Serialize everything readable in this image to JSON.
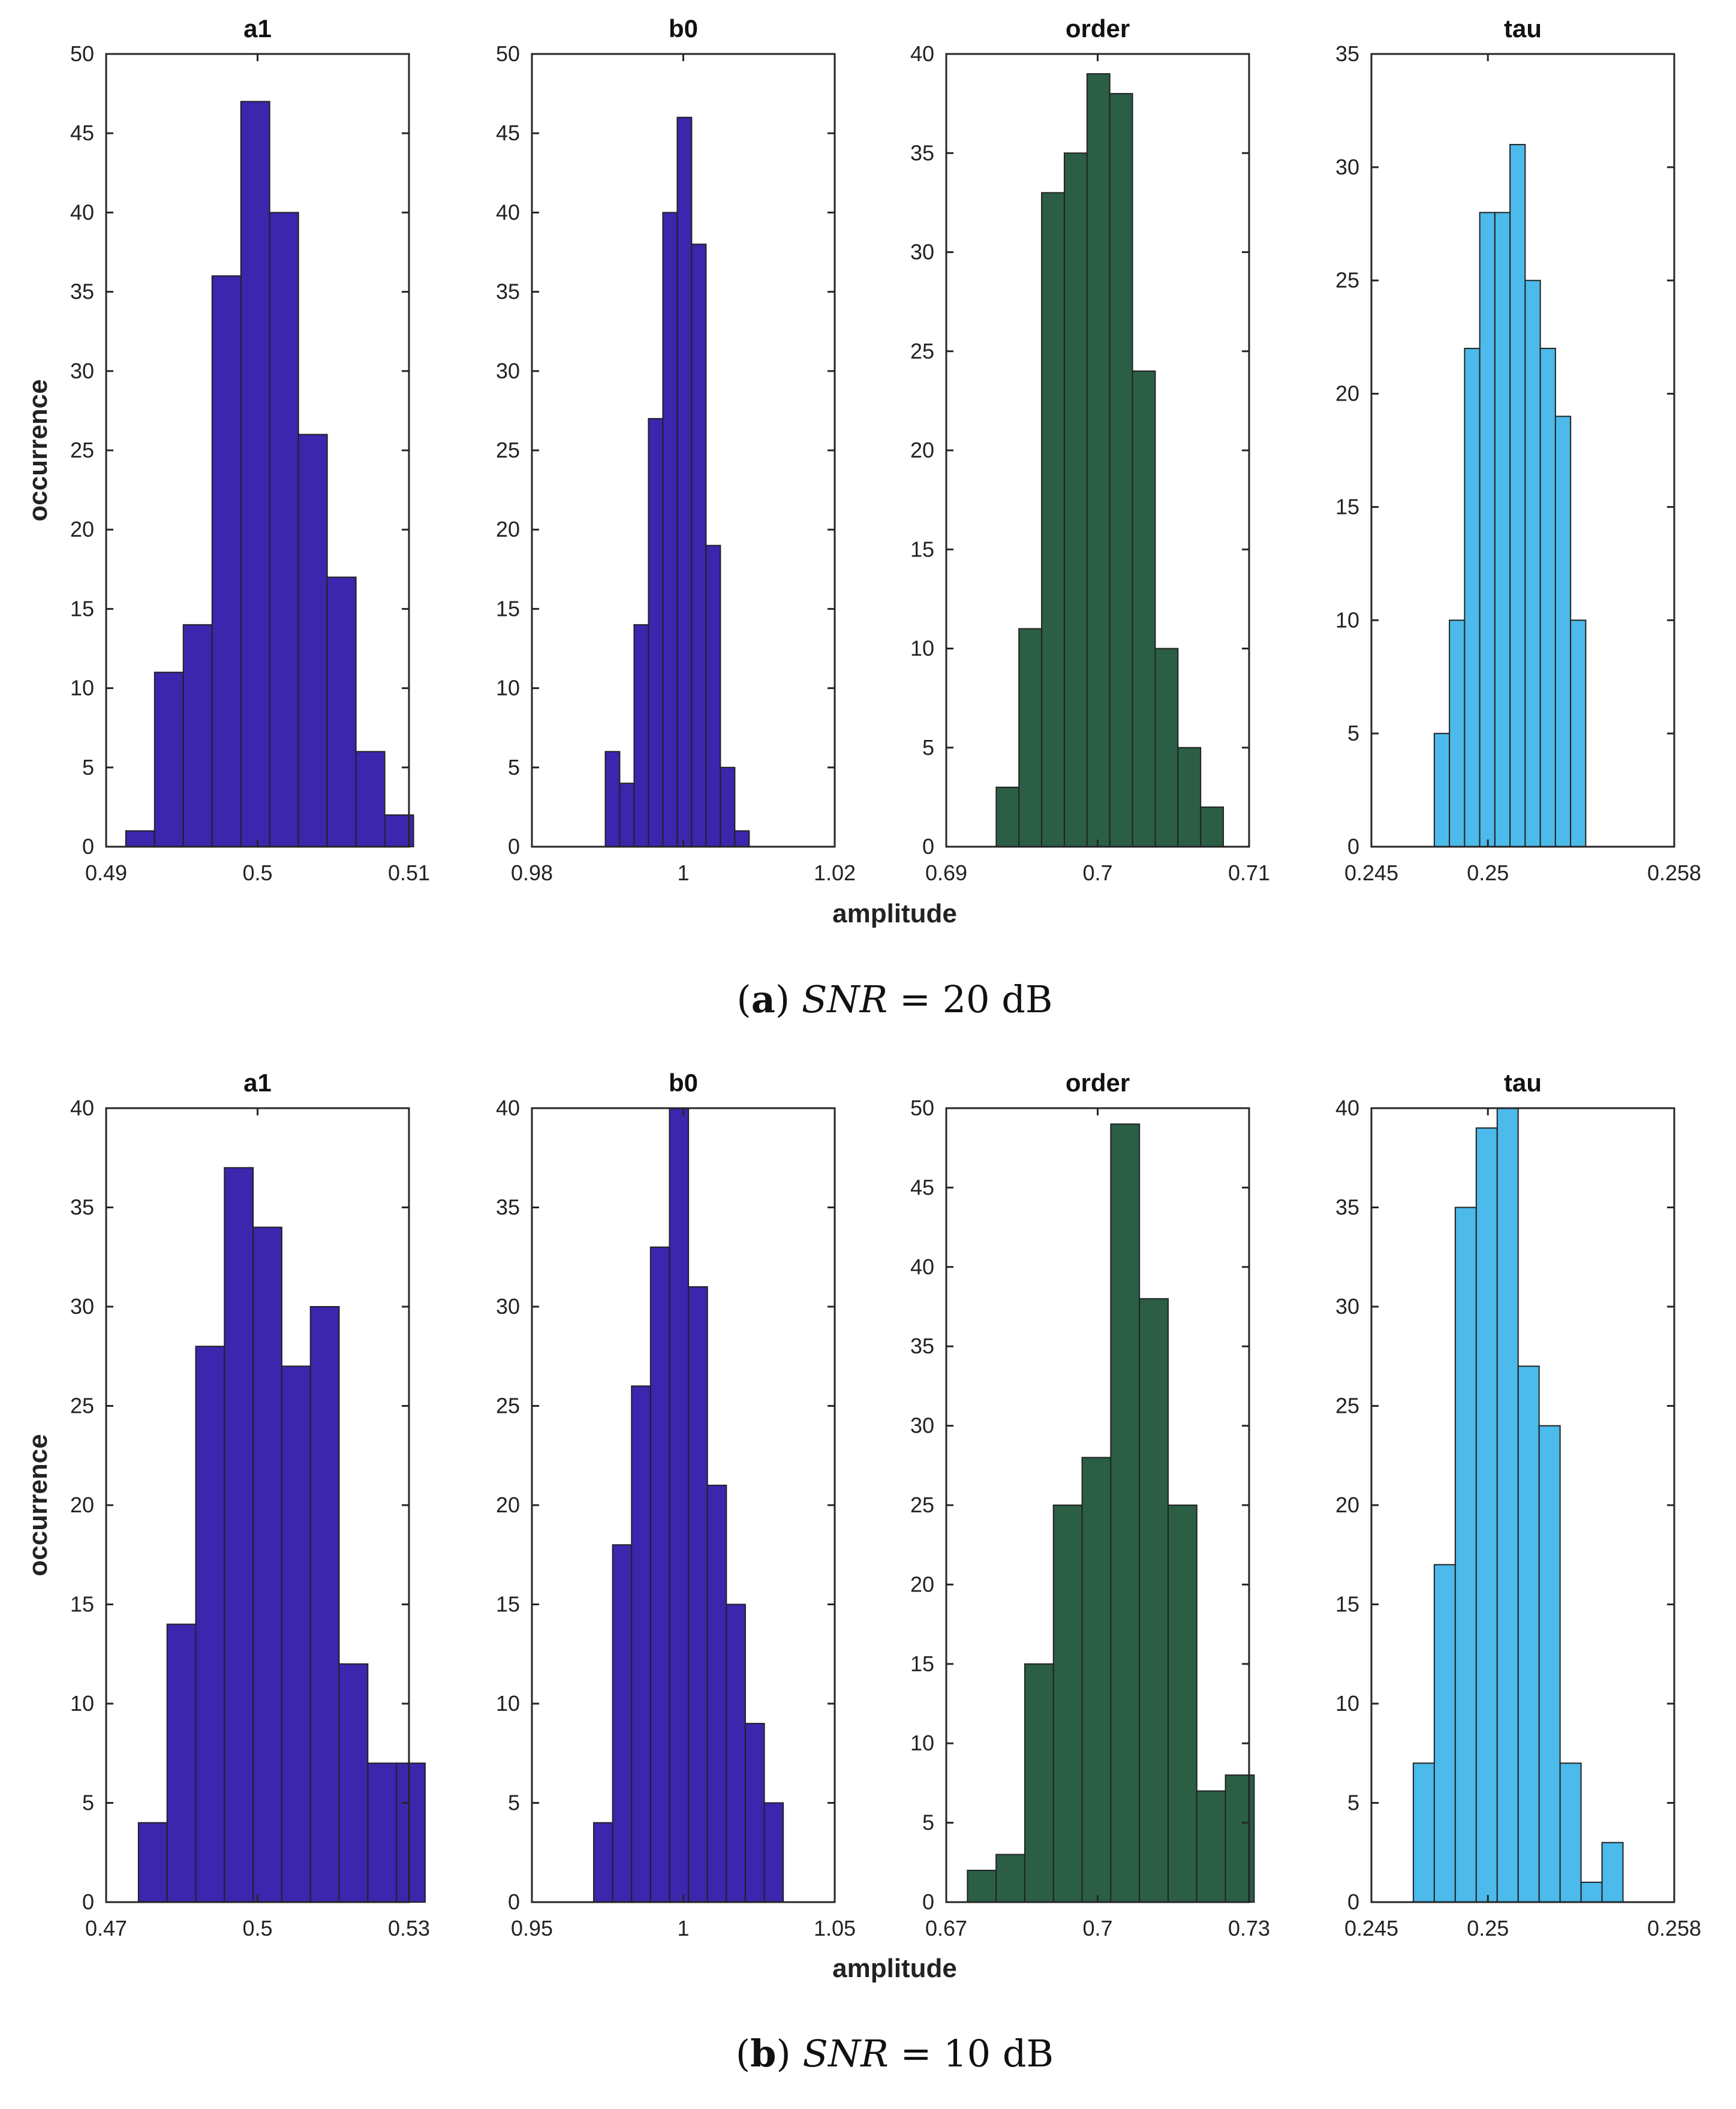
{
  "colors": {
    "a1": "#3b26ad",
    "b0": "#3b26ad",
    "order": "#2b5e45",
    "tau": "#4cbaea",
    "edge": "#222222"
  },
  "shared_labels": {
    "xlabel": "amplitude",
    "ylabel": "occurrence"
  },
  "captions": [
    {
      "letter": "a",
      "open": "(",
      "close": ")",
      "var": "SNR",
      "eq": " = ",
      "value": "20",
      "unit": "dB"
    },
    {
      "letter": "b",
      "open": "(",
      "close": ")",
      "var": "SNR",
      "eq": " = ",
      "value": "10",
      "unit": "dB"
    }
  ],
  "chart_data": [
    {
      "type": "bar",
      "title": "a1",
      "color_key": "a1",
      "panel": "a",
      "ylabel": "occurrence",
      "xlim": [
        0.49,
        0.51
      ],
      "ylim": [
        0,
        50
      ],
      "xticks": [
        0.49,
        0.5,
        0.51
      ],
      "xtick_labels": [
        "0.49",
        "0.5",
        "0.51"
      ],
      "yticks": [
        0,
        5,
        10,
        15,
        20,
        25,
        30,
        35,
        40,
        45,
        50
      ],
      "ytick_labels": [
        "0",
        "5",
        "10",
        "15",
        "20",
        "25",
        "30",
        "35",
        "40",
        "45",
        "50"
      ],
      "bin_start": 0.4913,
      "bin_width": 0.0019,
      "values": [
        1,
        11,
        14,
        36,
        47,
        40,
        26,
        17,
        6,
        2
      ]
    },
    {
      "type": "bar",
      "title": "b0",
      "color_key": "b0",
      "panel": "a",
      "xlim": [
        0.98,
        1.02
      ],
      "ylim": [
        0,
        50
      ],
      "xticks": [
        0.98,
        1,
        1.02
      ],
      "xtick_labels": [
        "0.98",
        "1",
        "1.02"
      ],
      "yticks": [
        0,
        5,
        10,
        15,
        20,
        25,
        30,
        35,
        40,
        45,
        50
      ],
      "ytick_labels": [
        "0",
        "5",
        "10",
        "15",
        "20",
        "25",
        "30",
        "35",
        "40",
        "45",
        "50"
      ],
      "bin_start": 0.9897,
      "bin_width": 0.0019,
      "values": [
        6,
        4,
        14,
        27,
        40,
        46,
        38,
        19,
        5,
        1
      ]
    },
    {
      "type": "bar",
      "title": "order",
      "color_key": "order",
      "panel": "a",
      "xlim": [
        0.69,
        0.71
      ],
      "ylim": [
        0,
        40
      ],
      "xticks": [
        0.69,
        0.7,
        0.71
      ],
      "xtick_labels": [
        "0.69",
        "0.7",
        "0.71"
      ],
      "yticks": [
        0,
        5,
        10,
        15,
        20,
        25,
        30,
        35,
        40
      ],
      "ytick_labels": [
        "0",
        "5",
        "10",
        "15",
        "20",
        "25",
        "30",
        "35",
        "40"
      ],
      "bin_start": 0.6933,
      "bin_width": 0.0015,
      "values": [
        3,
        11,
        33,
        35,
        39,
        38,
        24,
        10,
        5,
        2
      ]
    },
    {
      "type": "bar",
      "title": "tau",
      "color_key": "tau",
      "panel": "a",
      "xlim": [
        0.245,
        0.258
      ],
      "ylim": [
        0,
        35
      ],
      "xticks": [
        0.245,
        0.25,
        0.258
      ],
      "xtick_labels": [
        "0.245",
        "0.25",
        "0.258"
      ],
      "yticks": [
        0,
        5,
        10,
        15,
        20,
        25,
        30,
        35
      ],
      "ytick_labels": [
        "0",
        "5",
        "10",
        "15",
        "20",
        "25",
        "30",
        "35"
      ],
      "bin_start": 0.2477,
      "bin_width": 0.00065,
      "values": [
        5,
        10,
        22,
        28,
        28,
        31,
        25,
        22,
        19,
        10
      ]
    },
    {
      "type": "bar",
      "title": "a1",
      "color_key": "a1",
      "panel": "b",
      "ylabel": "occurrence",
      "xlim": [
        0.47,
        0.53
      ],
      "ylim": [
        0,
        40
      ],
      "xticks": [
        0.47,
        0.5,
        0.53
      ],
      "xtick_labels": [
        "0.47",
        "0.5",
        "0.53"
      ],
      "yticks": [
        0,
        5,
        10,
        15,
        20,
        25,
        30,
        35,
        40
      ],
      "ytick_labels": [
        "0",
        "5",
        "10",
        "15",
        "20",
        "25",
        "30",
        "35",
        "40"
      ],
      "bin_start": 0.4764,
      "bin_width": 0.00568,
      "values": [
        4,
        14,
        28,
        37,
        34,
        27,
        30,
        12,
        7,
        7
      ]
    },
    {
      "type": "bar",
      "title": "b0",
      "color_key": "b0",
      "panel": "b",
      "xlim": [
        0.95,
        1.05
      ],
      "ylim": [
        0,
        40
      ],
      "xticks": [
        0.95,
        1,
        1.05
      ],
      "xtick_labels": [
        "0.95",
        "1",
        "1.05"
      ],
      "yticks": [
        0,
        5,
        10,
        15,
        20,
        25,
        30,
        35,
        40
      ],
      "ytick_labels": [
        "0",
        "5",
        "10",
        "15",
        "20",
        "25",
        "30",
        "35",
        "40"
      ],
      "bin_start": 0.9704,
      "bin_width": 0.00626,
      "values": [
        4,
        18,
        26,
        33,
        40,
        31,
        21,
        15,
        9,
        5
      ]
    },
    {
      "type": "bar",
      "title": "order",
      "color_key": "order",
      "panel": "b",
      "xlim": [
        0.67,
        0.73
      ],
      "ylim": [
        0,
        50
      ],
      "xticks": [
        0.67,
        0.7,
        0.73
      ],
      "xtick_labels": [
        "0.67",
        "0.7",
        "0.73"
      ],
      "yticks": [
        0,
        5,
        10,
        15,
        20,
        25,
        30,
        35,
        40,
        45,
        50
      ],
      "ytick_labels": [
        "0",
        "5",
        "10",
        "15",
        "20",
        "25",
        "30",
        "35",
        "40",
        "45",
        "50"
      ],
      "bin_start": 0.6742,
      "bin_width": 0.00568,
      "values": [
        2,
        3,
        15,
        25,
        28,
        49,
        38,
        25,
        7,
        8
      ]
    },
    {
      "type": "bar",
      "title": "tau",
      "color_key": "tau",
      "panel": "b",
      "xlim": [
        0.245,
        0.258
      ],
      "ylim": [
        0,
        40
      ],
      "xticks": [
        0.245,
        0.25,
        0.258
      ],
      "xtick_labels": [
        "0.245",
        "0.25",
        "0.258"
      ],
      "yticks": [
        0,
        5,
        10,
        15,
        20,
        25,
        30,
        35,
        40
      ],
      "ytick_labels": [
        "0",
        "5",
        "10",
        "15",
        "20",
        "25",
        "30",
        "35",
        "40"
      ],
      "bin_start": 0.2468,
      "bin_width": 0.0009,
      "values": [
        7,
        17,
        35,
        39,
        40,
        27,
        24,
        7,
        1,
        3
      ]
    }
  ]
}
